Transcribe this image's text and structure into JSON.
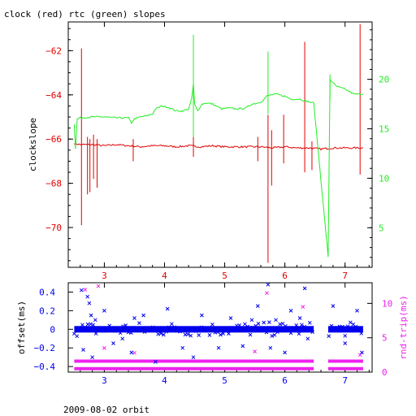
{
  "title": "clock (red) rtc (green) slopes",
  "footer": "2009-08-02 orbit",
  "colors": {
    "red": "#e00000",
    "green": "#22ee22",
    "blue": "#0000ee",
    "magenta": "#ee22ee",
    "axis": "#000000"
  },
  "chart_data": [
    {
      "type": "line",
      "title": "clock (red) rtc (green) slopes",
      "ylabel": "clockslope",
      "xlim": [
        2.4,
        7.45
      ],
      "ylim": [
        -71.8,
        -60.7
      ],
      "y2lim": [
        1.0,
        25.8
      ],
      "x_ticks": [
        3,
        4,
        5,
        6,
        7
      ],
      "y_ticks": [
        -62,
        -64,
        -66,
        -68,
        -70
      ],
      "y2_ticks": [
        5,
        10,
        15,
        20
      ],
      "series": [
        {
          "name": "clock",
          "axis": "left",
          "color": "red",
          "x": [
            2.5,
            2.6,
            2.8,
            3.0,
            3.2,
            3.4,
            3.6,
            3.8,
            4.0,
            4.2,
            4.4,
            4.6,
            4.8,
            5.0,
            5.2,
            5.4,
            5.6,
            5.8,
            6.0,
            6.2,
            6.4,
            6.6,
            6.8,
            7.0,
            7.2,
            7.3
          ],
          "values": [
            -66.2,
            -66.25,
            -66.25,
            -66.3,
            -66.25,
            -66.3,
            -66.35,
            -66.3,
            -66.3,
            -66.35,
            -66.3,
            -66.35,
            -66.3,
            -66.35,
            -66.35,
            -66.35,
            -66.35,
            -66.4,
            -66.35,
            -66.4,
            -66.4,
            -66.45,
            -66.4,
            -66.4,
            -66.4,
            -66.4
          ],
          "spikes": [
            {
              "x": 2.62,
              "low": -69.9,
              "high": -61.9
            },
            {
              "x": 2.72,
              "low": -68.5,
              "high": -65.9
            },
            {
              "x": 2.76,
              "low": -68.4,
              "high": -66.0
            },
            {
              "x": 2.82,
              "low": -67.8,
              "high": -65.8
            },
            {
              "x": 2.88,
              "low": -68.2,
              "high": -66.0
            },
            {
              "x": 3.48,
              "low": -67.0,
              "high": -66.0
            },
            {
              "x": 4.48,
              "low": -66.8,
              "high": -65.9
            },
            {
              "x": 5.55,
              "low": -67.0,
              "high": -65.9
            },
            {
              "x": 5.72,
              "low": -71.6,
              "high": -64.9
            },
            {
              "x": 5.78,
              "low": -68.1,
              "high": -65.6
            },
            {
              "x": 5.98,
              "low": -67.1,
              "high": -64.9
            },
            {
              "x": 6.33,
              "low": -67.5,
              "high": -61.6
            },
            {
              "x": 6.45,
              "low": -67.4,
              "high": -66.1
            },
            {
              "x": 7.25,
              "low": -67.6,
              "high": -60.8
            }
          ]
        },
        {
          "name": "rtc",
          "axis": "right",
          "color": "green",
          "x": [
            2.5,
            2.52,
            2.55,
            2.6,
            2.8,
            3.0,
            3.2,
            3.4,
            3.45,
            3.5,
            3.6,
            3.7,
            3.8,
            3.85,
            3.95,
            4.05,
            4.2,
            4.3,
            4.4,
            4.45,
            4.48,
            4.5,
            4.55,
            4.62,
            4.7,
            4.8,
            4.95,
            5.05,
            5.2,
            5.35,
            5.45,
            5.55,
            5.62,
            5.7,
            5.75,
            5.85,
            6.0,
            6.1,
            6.25,
            6.35,
            6.48,
            6.72,
            6.75,
            6.85,
            7.0,
            7.15,
            7.3
          ],
          "values": [
            15.5,
            13.0,
            16.0,
            16.1,
            16.2,
            16.2,
            16.1,
            16.1,
            15.6,
            16.0,
            16.2,
            16.3,
            16.5,
            17.0,
            17.3,
            17.2,
            16.8,
            16.8,
            17.0,
            18.0,
            19.5,
            17.5,
            16.8,
            17.5,
            17.6,
            17.5,
            17.0,
            17.1,
            17.0,
            17.1,
            17.5,
            17.6,
            17.8,
            18.3,
            18.4,
            18.5,
            18.3,
            18.0,
            18.0,
            17.8,
            17.6,
            2.0,
            20.0,
            19.3,
            19.0,
            18.5,
            18.5
          ],
          "spikes": [
            {
              "x": 4.48,
              "low": 14.2,
              "high": 24.5
            },
            {
              "x": 5.72,
              "low": 16.5,
              "high": 22.8
            },
            {
              "x": 6.75,
              "low": 18.0,
              "high": 20.5
            }
          ]
        }
      ]
    },
    {
      "type": "scatter",
      "xlabel": "",
      "ylabel": "offset(ms)",
      "y2label": "rnd-trip(ms)",
      "xlim": [
        2.4,
        7.45
      ],
      "ylim": [
        -0.46,
        0.5
      ],
      "y2lim": [
        0,
        13
      ],
      "x_ticks": [
        3,
        4,
        5,
        6,
        7
      ],
      "y_ticks": [
        0.4,
        0.2,
        0,
        -0.2,
        -0.4
      ],
      "y_tick_labels": [
        "0.4",
        "0.2",
        "0",
        "−0.2",
        "−0.4"
      ],
      "y2_ticks": [
        0,
        5,
        10
      ],
      "series": [
        {
          "name": "offset",
          "axis": "left",
          "color": "blue",
          "band": {
            "center": 0.0,
            "spread": 0.035
          },
          "outliers": [
            {
              "x": 2.62,
              "y": 0.42
            },
            {
              "x": 2.72,
              "y": 0.35
            },
            {
              "x": 2.75,
              "y": 0.28
            },
            {
              "x": 2.78,
              "y": 0.15
            },
            {
              "x": 2.65,
              "y": -0.22
            },
            {
              "x": 2.8,
              "y": -0.3
            },
            {
              "x": 2.85,
              "y": 0.1
            },
            {
              "x": 3.0,
              "y": 0.2
            },
            {
              "x": 3.15,
              "y": -0.15
            },
            {
              "x": 3.3,
              "y": -0.1
            },
            {
              "x": 3.45,
              "y": -0.25
            },
            {
              "x": 3.5,
              "y": 0.12
            },
            {
              "x": 3.65,
              "y": 0.15
            },
            {
              "x": 3.85,
              "y": -0.35
            },
            {
              "x": 4.05,
              "y": 0.22
            },
            {
              "x": 4.3,
              "y": -0.2
            },
            {
              "x": 4.48,
              "y": -0.3
            },
            {
              "x": 4.62,
              "y": 0.15
            },
            {
              "x": 4.9,
              "y": -0.2
            },
            {
              "x": 5.1,
              "y": 0.12
            },
            {
              "x": 5.3,
              "y": -0.18
            },
            {
              "x": 5.45,
              "y": 0.1
            },
            {
              "x": 5.55,
              "y": 0.25
            },
            {
              "x": 5.72,
              "y": 0.48
            },
            {
              "x": 5.76,
              "y": -0.2
            },
            {
              "x": 5.85,
              "y": 0.1
            },
            {
              "x": 6.0,
              "y": -0.25
            },
            {
              "x": 6.1,
              "y": 0.2
            },
            {
              "x": 6.25,
              "y": 0.12
            },
            {
              "x": 6.33,
              "y": 0.44
            },
            {
              "x": 6.38,
              "y": -0.1
            },
            {
              "x": 6.8,
              "y": 0.25
            },
            {
              "x": 7.0,
              "y": -0.15
            },
            {
              "x": 7.2,
              "y": 0.2
            },
            {
              "x": 7.28,
              "y": -0.25
            }
          ],
          "gaps": [
            [
              6.48,
              6.72
            ]
          ]
        },
        {
          "name": "rnd-trip",
          "axis": "right",
          "color": "magenta",
          "bands": [
            0.5,
            1.6
          ],
          "outliers": [
            {
              "x": 2.68,
              "y": 12.0
            },
            {
              "x": 2.9,
              "y": 12.5
            },
            {
              "x": 3.0,
              "y": 3.5
            },
            {
              "x": 3.5,
              "y": 2.8
            },
            {
              "x": 5.7,
              "y": 11.5
            },
            {
              "x": 5.5,
              "y": 3.0
            },
            {
              "x": 6.3,
              "y": 9.5
            },
            {
              "x": 7.25,
              "y": 2.5
            }
          ],
          "gaps": [
            [
              6.48,
              6.72
            ]
          ]
        }
      ]
    }
  ]
}
